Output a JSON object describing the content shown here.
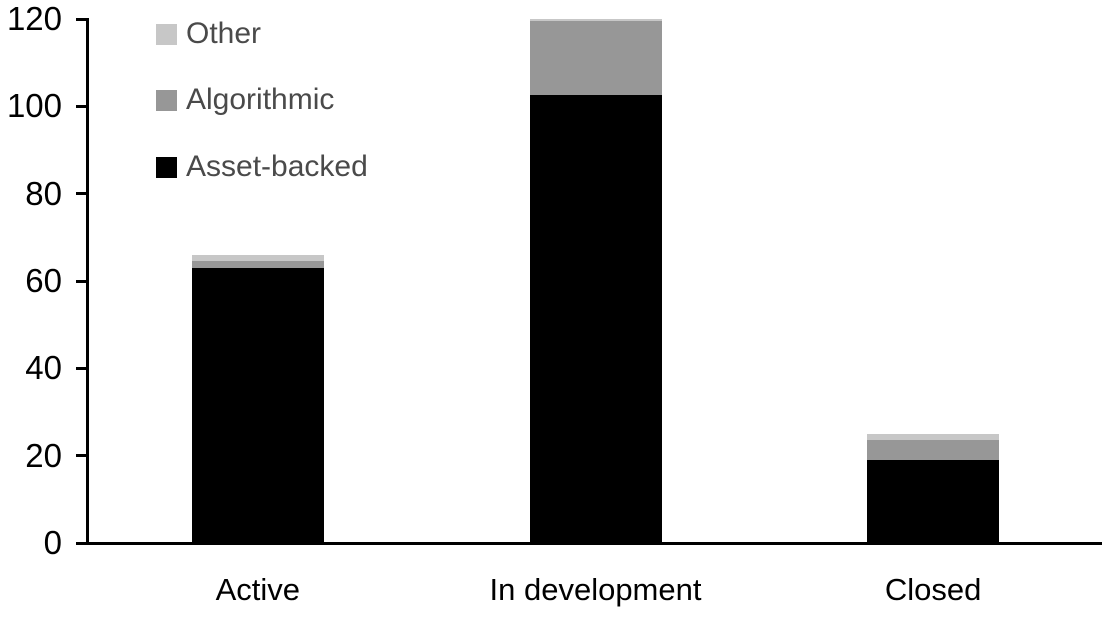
{
  "chart_data": {
    "type": "bar",
    "stacked": true,
    "title": "",
    "xlabel": "",
    "ylabel": "",
    "categories": [
      "Active",
      "In development",
      "Closed"
    ],
    "series": [
      {
        "name": "Asset-backed",
        "color": "#000000",
        "values": [
          63,
          102.5,
          19
        ]
      },
      {
        "name": "Algorithmic",
        "color": "#979797",
        "values": [
          1.5,
          17,
          4.5
        ]
      },
      {
        "name": "Other",
        "color": "#C7C7C7",
        "values": [
          1.5,
          0.5,
          1.5
        ]
      }
    ],
    "totals": [
      66,
      120,
      25
    ],
    "ylim": [
      0,
      120
    ],
    "yticks": [
      0,
      20,
      40,
      60,
      80,
      100,
      120
    ],
    "grid": false,
    "legend_position": "top-left"
  },
  "legend": {
    "items": [
      {
        "label": "Other",
        "color": "#C7C7C7"
      },
      {
        "label": "Algorithmic",
        "color": "#979797"
      },
      {
        "label": "Asset-backed",
        "color": "#000000"
      }
    ]
  },
  "colors": {
    "axis": "#000000",
    "axis_text": "#000000",
    "legend_text": "#4A4A4A",
    "background": "#FFFFFF"
  }
}
